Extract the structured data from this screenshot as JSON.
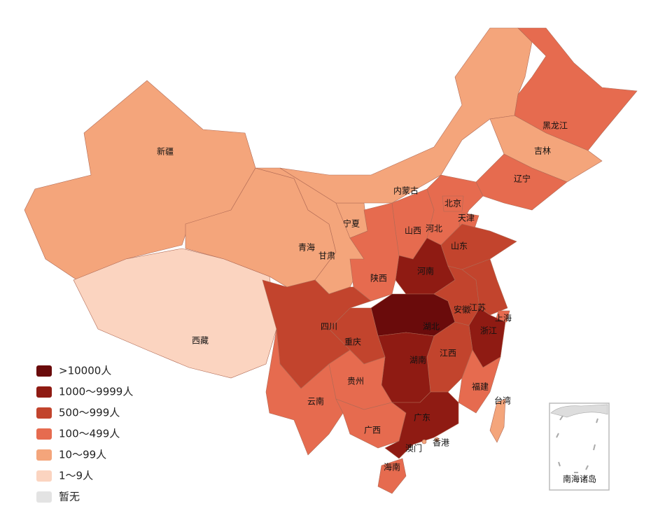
{
  "legend": [
    {
      "label": ">10000人",
      "color": "#6a0b0b"
    },
    {
      "label": "1000～9999人",
      "color": "#8f1b13"
    },
    {
      "label": "500～999人",
      "color": "#c2442d"
    },
    {
      "label": "100～499人",
      "color": "#e66b4f"
    },
    {
      "label": "10～99人",
      "color": "#f4a57b"
    },
    {
      "label": "1～9人",
      "color": "#fbd4c0"
    },
    {
      "label": "暂无",
      "color": "#e3e3e3"
    }
  ],
  "regions": [
    {
      "name": "新疆",
      "level": 4
    },
    {
      "name": "西藏",
      "level": 5
    },
    {
      "name": "青海",
      "level": 4
    },
    {
      "name": "甘肃",
      "level": 4
    },
    {
      "name": "宁夏",
      "level": 4
    },
    {
      "name": "内蒙古",
      "level": 4
    },
    {
      "name": "黑龙江",
      "level": 3
    },
    {
      "name": "吉林",
      "level": 4
    },
    {
      "name": "辽宁",
      "level": 3
    },
    {
      "name": "河北",
      "level": 3
    },
    {
      "name": "北京",
      "level": 3
    },
    {
      "name": "天津",
      "level": 3
    },
    {
      "name": "山西",
      "level": 3
    },
    {
      "name": "山东",
      "level": 2
    },
    {
      "name": "河南",
      "level": 1
    },
    {
      "name": "陕西",
      "level": 3
    },
    {
      "name": "湖北",
      "level": 0
    },
    {
      "name": "安徽",
      "level": 2
    },
    {
      "name": "江苏",
      "level": 2
    },
    {
      "name": "上海",
      "level": 3
    },
    {
      "name": "浙江",
      "level": 1
    },
    {
      "name": "江西",
      "level": 2
    },
    {
      "name": "福建",
      "level": 3
    },
    {
      "name": "湖南",
      "level": 1
    },
    {
      "name": "重庆",
      "level": 2
    },
    {
      "name": "四川",
      "level": 2
    },
    {
      "name": "贵州",
      "level": 3
    },
    {
      "name": "云南",
      "level": 3
    },
    {
      "name": "广西",
      "level": 3
    },
    {
      "name": "广东",
      "level": 1
    },
    {
      "name": "海南",
      "level": 3
    },
    {
      "name": "台湾",
      "level": 4
    },
    {
      "name": "香港",
      "level": 4
    },
    {
      "name": "澳门",
      "level": 4
    }
  ],
  "inset_label": "南海诸岛"
}
